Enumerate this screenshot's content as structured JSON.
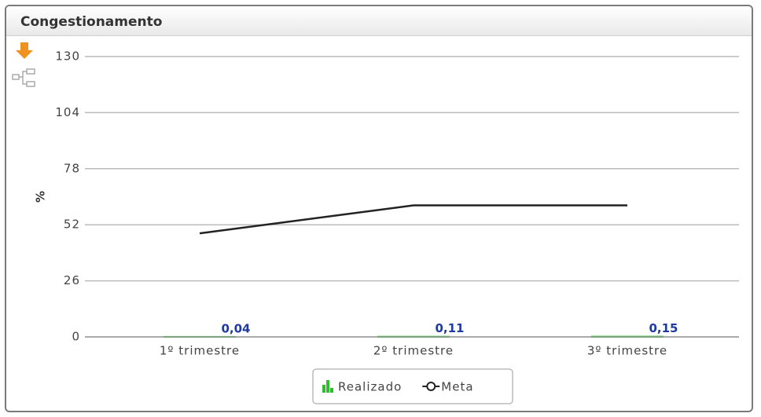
{
  "chart_data": {
    "type": "bar",
    "title": "Congestionamento",
    "categories": [
      "1º trimestre",
      "2º trimestre",
      "3º trimestre"
    ],
    "series": [
      {
        "name": "Realizado",
        "type": "bar",
        "color": "#2ebd2e",
        "values": [
          0.04,
          0.11,
          0.15
        ],
        "value_labels": [
          "0,04",
          "0,11",
          "0,15"
        ]
      },
      {
        "name": "Meta",
        "type": "line",
        "color": "#222222",
        "values": [
          48,
          61,
          61
        ]
      }
    ],
    "ylabel": "%",
    "ylim": [
      0,
      130
    ],
    "yticks": [
      0,
      26,
      52,
      78,
      104,
      130
    ],
    "grid": true,
    "legend": "bottom"
  }
}
